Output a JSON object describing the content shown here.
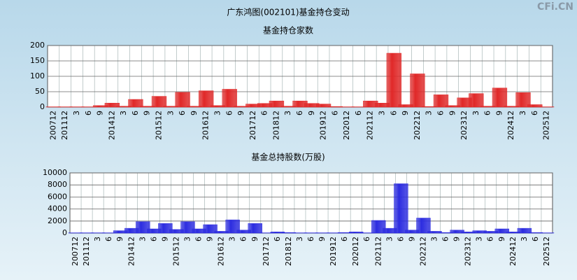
{
  "title": "广东鸿图(002101)基金持仓变动",
  "watermark": "CFi.CN",
  "chart_data": [
    {
      "type": "bar",
      "title": "基金持仓家数",
      "categories": [
        "200712",
        "201112",
        "3",
        "6",
        "9",
        "201412",
        "3",
        "6",
        "9",
        "201512",
        "3",
        "6",
        "9",
        "201612",
        "3",
        "6",
        "9",
        "201712",
        "6",
        "201812",
        "3",
        "6",
        "9",
        "201912",
        "6",
        "202012",
        "6",
        "202112",
        "3",
        "6",
        "9",
        "202212",
        "3",
        "6",
        "9",
        "202312",
        "3",
        "6",
        "9",
        "202412",
        "3",
        "6",
        "202512"
      ],
      "values": [
        1,
        1,
        1,
        1,
        5,
        13,
        3,
        25,
        3,
        35,
        3,
        48,
        3,
        53,
        5,
        58,
        3,
        10,
        12,
        20,
        3,
        20,
        12,
        10,
        2,
        1,
        1,
        20,
        13,
        175,
        8,
        108,
        2,
        40,
        5,
        30,
        44,
        3,
        62,
        3,
        47,
        8,
        1
      ],
      "color": "#e02828",
      "ylim": [
        0,
        200
      ],
      "yticks": [
        0,
        50,
        100,
        150,
        200
      ],
      "grid": true
    },
    {
      "type": "bar",
      "title": "基金总持股数(万股)",
      "categories": [
        "200712",
        "201112",
        "3",
        "6",
        "9",
        "201412",
        "3",
        "6",
        "9",
        "201512",
        "3",
        "6",
        "9",
        "201612",
        "3",
        "6",
        "9",
        "201712",
        "6",
        "201812",
        "3",
        "6",
        "9",
        "201912",
        "6",
        "202012",
        "6",
        "202112",
        "3",
        "6",
        "9",
        "202212",
        "3",
        "6",
        "9",
        "202312",
        "3",
        "6",
        "9",
        "202412",
        "3",
        "6",
        "202512"
      ],
      "values": [
        50,
        50,
        50,
        50,
        400,
        800,
        1900,
        700,
        1600,
        600,
        1900,
        700,
        1400,
        300,
        2200,
        500,
        1600,
        50,
        200,
        100,
        50,
        50,
        50,
        50,
        100,
        200,
        50,
        2100,
        800,
        8200,
        500,
        2500,
        300,
        100,
        500,
        200,
        400,
        300,
        700,
        200,
        800,
        100,
        50
      ],
      "color": "#2c2ce0",
      "ylim": [
        0,
        10000
      ],
      "yticks": [
        0,
        2000,
        4000,
        6000,
        8000,
        10000
      ],
      "grid": true
    }
  ]
}
